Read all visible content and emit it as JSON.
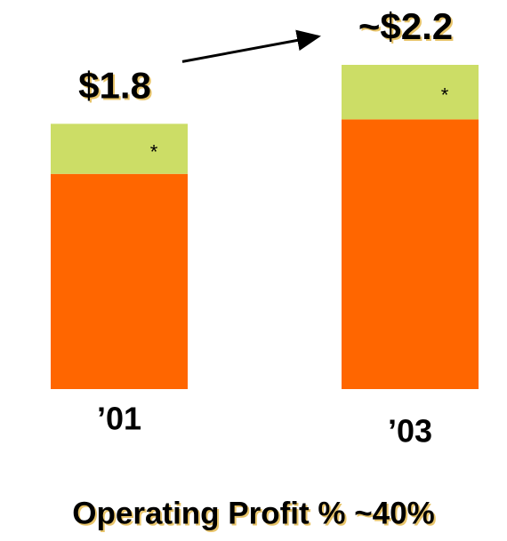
{
  "chart_data": {
    "type": "stacked-bar",
    "subtitle": "Operating Profit % ~40%",
    "categories": [
      "’01",
      "’03"
    ],
    "series": [
      {
        "color": "#ff6600",
        "values": [
          1.46,
          1.83
        ]
      },
      {
        "color": "#ccdd66",
        "values": [
          0.34,
          0.37
        ],
        "value_labels": [
          "*",
          "*"
        ]
      }
    ],
    "totals": [
      1.8,
      2.2
    ],
    "total_labels": [
      "$1.8",
      "~$2.2"
    ],
    "ylim": [
      0,
      2.2
    ]
  }
}
